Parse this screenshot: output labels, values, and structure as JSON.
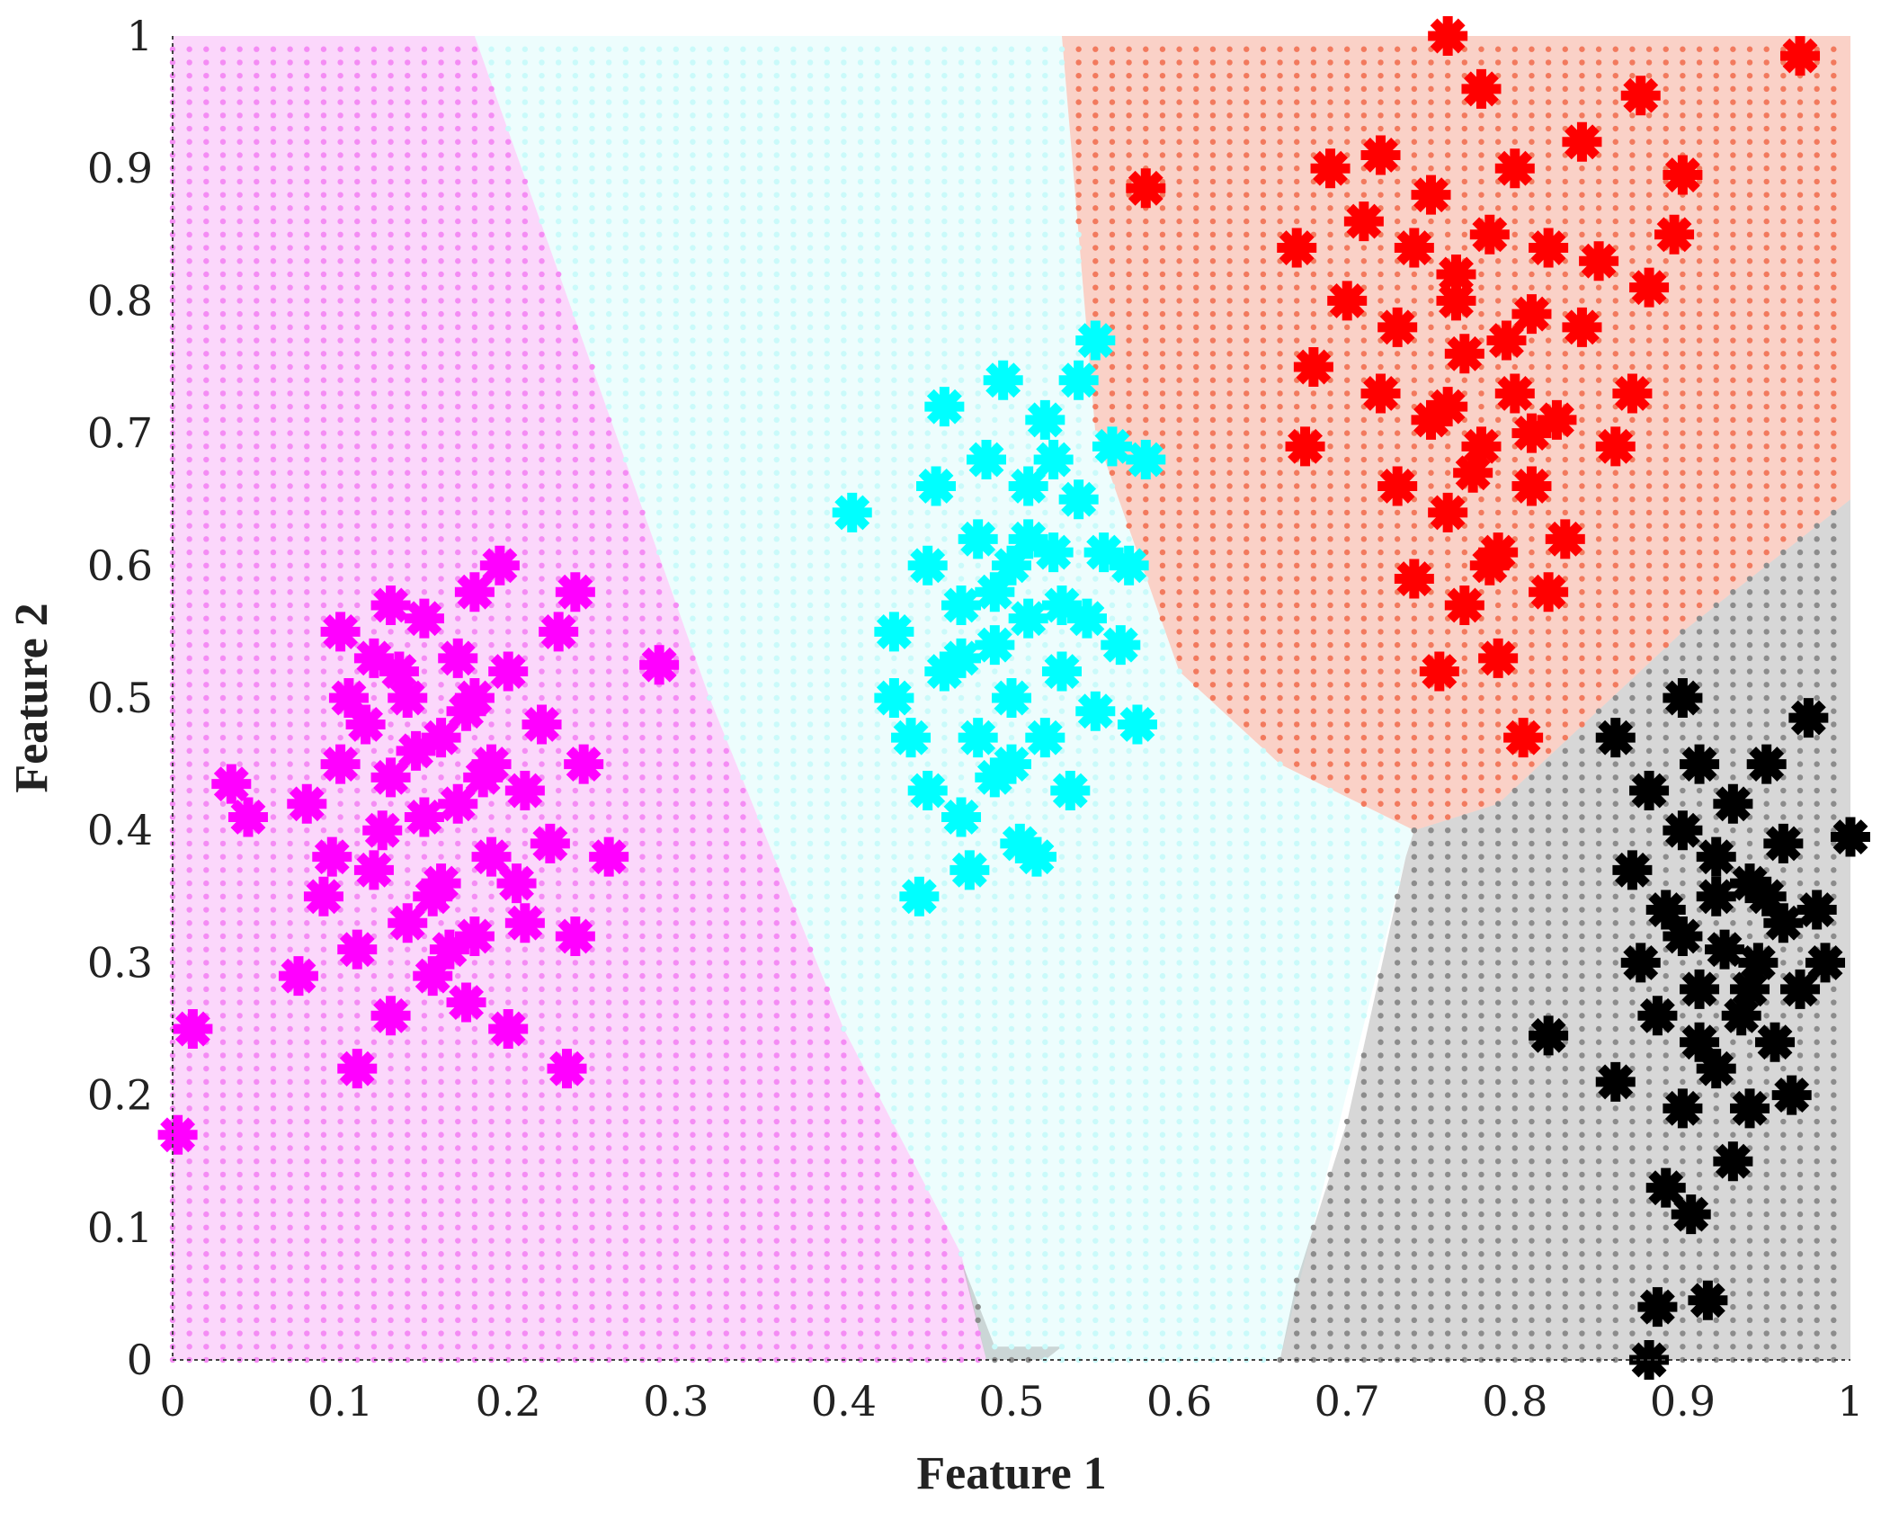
{
  "chart_data": {
    "type": "scatter",
    "xlabel": "Feature 1",
    "ylabel": "Feature 2",
    "xlim": [
      0,
      1
    ],
    "ylim": [
      0,
      1
    ],
    "xticks": [
      "0",
      "0.1",
      "0.2",
      "0.3",
      "0.4",
      "0.5",
      "0.6",
      "0.7",
      "0.8",
      "0.9",
      "1"
    ],
    "yticks": [
      "0",
      "0.1",
      "0.2",
      "0.3",
      "0.4",
      "0.5",
      "0.6",
      "0.7",
      "0.8",
      "0.9",
      "1"
    ],
    "grid": false,
    "decision_regions": [
      {
        "class": "magenta",
        "color": "#f48cf4",
        "polygon": [
          [
            0,
            0
          ],
          [
            0.485,
            0
          ],
          [
            0.47,
            0.08
          ],
          [
            0.4,
            0.25
          ],
          [
            0.32,
            0.5
          ],
          [
            0.18,
            1.0
          ],
          [
            0,
            1.0
          ]
        ]
      },
      {
        "class": "cyan",
        "color": "#cafafa",
        "polygon": [
          [
            0.485,
            0
          ],
          [
            0.66,
            0
          ],
          [
            0.735,
            0.38
          ],
          [
            0.74,
            0.4
          ],
          [
            0.66,
            0.45
          ],
          [
            0.6,
            0.52
          ],
          [
            0.55,
            0.7
          ],
          [
            0.53,
            1.0
          ],
          [
            0.18,
            1.0
          ],
          [
            0.32,
            0.5
          ],
          [
            0.4,
            0.25
          ],
          [
            0.47,
            0.08
          ]
        ]
      },
      {
        "class": "red",
        "color": "#f27a5e",
        "polygon": [
          [
            0.53,
            1.0
          ],
          [
            1.0,
            1.0
          ],
          [
            1.0,
            0.65
          ],
          [
            0.9,
            0.55
          ],
          [
            0.79,
            0.42
          ],
          [
            0.74,
            0.4
          ],
          [
            0.66,
            0.45
          ],
          [
            0.6,
            0.52
          ],
          [
            0.55,
            0.7
          ]
        ]
      },
      {
        "class": "black",
        "color": "#8c8c8c",
        "polygon": [
          [
            0.66,
            0
          ],
          [
            1.0,
            0
          ],
          [
            1.0,
            0.65
          ],
          [
            0.9,
            0.55
          ],
          [
            0.79,
            0.42
          ],
          [
            0.74,
            0.4
          ],
          [
            0.735,
            0.38
          ],
          [
            0.7,
            0.18
          ],
          [
            0.67,
            0.06
          ]
        ]
      },
      {
        "class": "black",
        "color": "#8c8c8c",
        "polygon": [
          [
            0.47,
            0.075
          ],
          [
            0.49,
            0.01
          ],
          [
            0.53,
            0.01
          ],
          [
            0.52,
            0
          ],
          [
            0.485,
            0
          ]
        ]
      }
    ],
    "series": [
      {
        "color": "#ff00ff",
        "points": [
          [
            0.003,
            0.17
          ],
          [
            0.012,
            0.25
          ],
          [
            0.035,
            0.435
          ],
          [
            0.045,
            0.41
          ],
          [
            0.075,
            0.29
          ],
          [
            0.08,
            0.42
          ],
          [
            0.09,
            0.35
          ],
          [
            0.095,
            0.38
          ],
          [
            0.1,
            0.55
          ],
          [
            0.1,
            0.45
          ],
          [
            0.11,
            0.22
          ],
          [
            0.11,
            0.31
          ],
          [
            0.115,
            0.48
          ],
          [
            0.12,
            0.53
          ],
          [
            0.12,
            0.37
          ],
          [
            0.13,
            0.57
          ],
          [
            0.13,
            0.44
          ],
          [
            0.13,
            0.26
          ],
          [
            0.14,
            0.5
          ],
          [
            0.14,
            0.33
          ],
          [
            0.15,
            0.56
          ],
          [
            0.15,
            0.41
          ],
          [
            0.155,
            0.29
          ],
          [
            0.16,
            0.47
          ],
          [
            0.16,
            0.36
          ],
          [
            0.17,
            0.53
          ],
          [
            0.17,
            0.42
          ],
          [
            0.175,
            0.27
          ],
          [
            0.18,
            0.58
          ],
          [
            0.18,
            0.5
          ],
          [
            0.18,
            0.32
          ],
          [
            0.19,
            0.45
          ],
          [
            0.19,
            0.38
          ],
          [
            0.195,
            0.6
          ],
          [
            0.2,
            0.25
          ],
          [
            0.2,
            0.52
          ],
          [
            0.21,
            0.43
          ],
          [
            0.21,
            0.33
          ],
          [
            0.22,
            0.48
          ],
          [
            0.225,
            0.39
          ],
          [
            0.23,
            0.55
          ],
          [
            0.235,
            0.22
          ],
          [
            0.24,
            0.58
          ],
          [
            0.24,
            0.32
          ],
          [
            0.245,
            0.45
          ],
          [
            0.26,
            0.38
          ],
          [
            0.29,
            0.525
          ],
          [
            0.105,
            0.5
          ],
          [
            0.125,
            0.4
          ],
          [
            0.145,
            0.46
          ],
          [
            0.165,
            0.31
          ],
          [
            0.185,
            0.44
          ],
          [
            0.205,
            0.36
          ],
          [
            0.135,
            0.52
          ],
          [
            0.155,
            0.35
          ],
          [
            0.175,
            0.49
          ]
        ]
      },
      {
        "color": "#00ffff",
        "points": [
          [
            0.405,
            0.64
          ],
          [
            0.43,
            0.55
          ],
          [
            0.43,
            0.5
          ],
          [
            0.44,
            0.47
          ],
          [
            0.445,
            0.35
          ],
          [
            0.45,
            0.6
          ],
          [
            0.45,
            0.43
          ],
          [
            0.455,
            0.66
          ],
          [
            0.46,
            0.72
          ],
          [
            0.46,
            0.52
          ],
          [
            0.47,
            0.57
          ],
          [
            0.47,
            0.41
          ],
          [
            0.475,
            0.37
          ],
          [
            0.48,
            0.62
          ],
          [
            0.48,
            0.47
          ],
          [
            0.485,
            0.68
          ],
          [
            0.49,
            0.54
          ],
          [
            0.49,
            0.44
          ],
          [
            0.495,
            0.74
          ],
          [
            0.5,
            0.6
          ],
          [
            0.5,
            0.5
          ],
          [
            0.505,
            0.39
          ],
          [
            0.51,
            0.66
          ],
          [
            0.51,
            0.56
          ],
          [
            0.515,
            0.38
          ],
          [
            0.52,
            0.47
          ],
          [
            0.52,
            0.71
          ],
          [
            0.525,
            0.61
          ],
          [
            0.53,
            0.52
          ],
          [
            0.535,
            0.43
          ],
          [
            0.54,
            0.74
          ],
          [
            0.54,
            0.65
          ],
          [
            0.545,
            0.56
          ],
          [
            0.55,
            0.77
          ],
          [
            0.55,
            0.49
          ],
          [
            0.555,
            0.61
          ],
          [
            0.56,
            0.69
          ],
          [
            0.565,
            0.54
          ],
          [
            0.57,
            0.6
          ],
          [
            0.575,
            0.48
          ],
          [
            0.58,
            0.68
          ],
          [
            0.49,
            0.58
          ],
          [
            0.51,
            0.62
          ],
          [
            0.53,
            0.57
          ],
          [
            0.47,
            0.53
          ],
          [
            0.5,
            0.45
          ],
          [
            0.525,
            0.68
          ]
        ]
      },
      {
        "color": "#ff0000",
        "points": [
          [
            0.58,
            0.885
          ],
          [
            0.67,
            0.84
          ],
          [
            0.675,
            0.69
          ],
          [
            0.68,
            0.75
          ],
          [
            0.69,
            0.9
          ],
          [
            0.7,
            0.8
          ],
          [
            0.71,
            0.86
          ],
          [
            0.72,
            0.73
          ],
          [
            0.72,
            0.91
          ],
          [
            0.73,
            0.78
          ],
          [
            0.73,
            0.66
          ],
          [
            0.74,
            0.84
          ],
          [
            0.74,
            0.59
          ],
          [
            0.75,
            0.71
          ],
          [
            0.75,
            0.88
          ],
          [
            0.755,
            0.52
          ],
          [
            0.76,
            1.0
          ],
          [
            0.76,
            0.64
          ],
          [
            0.765,
            0.8
          ],
          [
            0.77,
            0.76
          ],
          [
            0.77,
            0.57
          ],
          [
            0.78,
            0.69
          ],
          [
            0.78,
            0.96
          ],
          [
            0.785,
            0.85
          ],
          [
            0.79,
            0.61
          ],
          [
            0.79,
            0.53
          ],
          [
            0.8,
            0.73
          ],
          [
            0.8,
            0.9
          ],
          [
            0.805,
            0.47
          ],
          [
            0.81,
            0.66
          ],
          [
            0.81,
            0.79
          ],
          [
            0.82,
            0.58
          ],
          [
            0.82,
            0.84
          ],
          [
            0.825,
            0.71
          ],
          [
            0.83,
            0.62
          ],
          [
            0.84,
            0.92
          ],
          [
            0.84,
            0.78
          ],
          [
            0.85,
            0.83
          ],
          [
            0.86,
            0.69
          ],
          [
            0.87,
            0.73
          ],
          [
            0.875,
            0.955
          ],
          [
            0.88,
            0.81
          ],
          [
            0.895,
            0.85
          ],
          [
            0.9,
            0.895
          ],
          [
            0.97,
            0.985
          ],
          [
            0.76,
            0.72
          ],
          [
            0.775,
            0.67
          ],
          [
            0.795,
            0.77
          ],
          [
            0.81,
            0.7
          ],
          [
            0.765,
            0.82
          ],
          [
            0.785,
            0.6
          ]
        ]
      },
      {
        "color": "#000000",
        "points": [
          [
            0.82,
            0.245
          ],
          [
            0.86,
            0.21
          ],
          [
            0.86,
            0.47
          ],
          [
            0.87,
            0.37
          ],
          [
            0.875,
            0.3
          ],
          [
            0.88,
            0.0
          ],
          [
            0.88,
            0.43
          ],
          [
            0.885,
            0.26
          ],
          [
            0.885,
            0.04
          ],
          [
            0.89,
            0.13
          ],
          [
            0.89,
            0.34
          ],
          [
            0.9,
            0.5
          ],
          [
            0.9,
            0.19
          ],
          [
            0.9,
            0.4
          ],
          [
            0.905,
            0.11
          ],
          [
            0.91,
            0.28
          ],
          [
            0.91,
            0.45
          ],
          [
            0.915,
            0.045
          ],
          [
            0.92,
            0.35
          ],
          [
            0.92,
            0.22
          ],
          [
            0.925,
            0.31
          ],
          [
            0.93,
            0.15
          ],
          [
            0.93,
            0.42
          ],
          [
            0.935,
            0.26
          ],
          [
            0.94,
            0.36
          ],
          [
            0.94,
            0.19
          ],
          [
            0.945,
            0.3
          ],
          [
            0.95,
            0.45
          ],
          [
            0.955,
            0.24
          ],
          [
            0.96,
            0.33
          ],
          [
            0.96,
            0.39
          ],
          [
            0.965,
            0.2
          ],
          [
            0.97,
            0.28
          ],
          [
            0.975,
            0.485
          ],
          [
            0.98,
            0.34
          ],
          [
            0.985,
            0.3
          ],
          [
            1.0,
            0.395
          ],
          [
            0.9,
            0.32
          ],
          [
            0.92,
            0.38
          ],
          [
            0.94,
            0.28
          ],
          [
            0.91,
            0.24
          ],
          [
            0.95,
            0.35
          ]
        ]
      }
    ]
  }
}
